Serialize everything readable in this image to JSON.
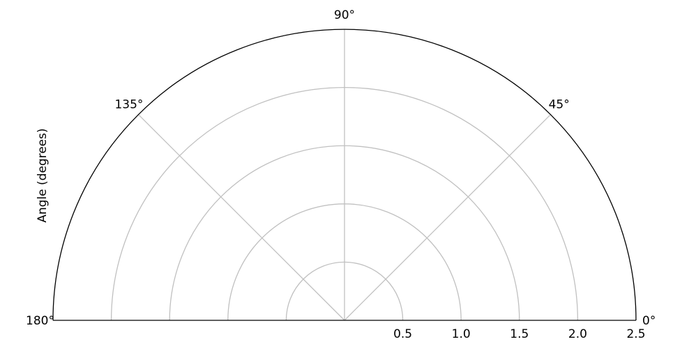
{
  "chart_data": {
    "type": "polar",
    "subtype": "half-polar (0° to 180°)",
    "title": "",
    "ylabel": "Angle (degrees)",
    "theta_range_deg": [
      0,
      180
    ],
    "theta_ticks": [
      "0°",
      "45°",
      "90°",
      "135°",
      "180°"
    ],
    "theta_tick_values": [
      0,
      45,
      90,
      135,
      180
    ],
    "r_range": [
      0,
      2.5
    ],
    "r_ticks": [
      "0.5",
      "1.0",
      "1.5",
      "2.0",
      "2.5"
    ],
    "r_tick_values": [
      0.5,
      1.0,
      1.5,
      2.0,
      2.5
    ],
    "grid": true,
    "series": []
  },
  "colors": {
    "grid": "#c0c0c0",
    "frame": "#000000",
    "text": "#000000"
  }
}
